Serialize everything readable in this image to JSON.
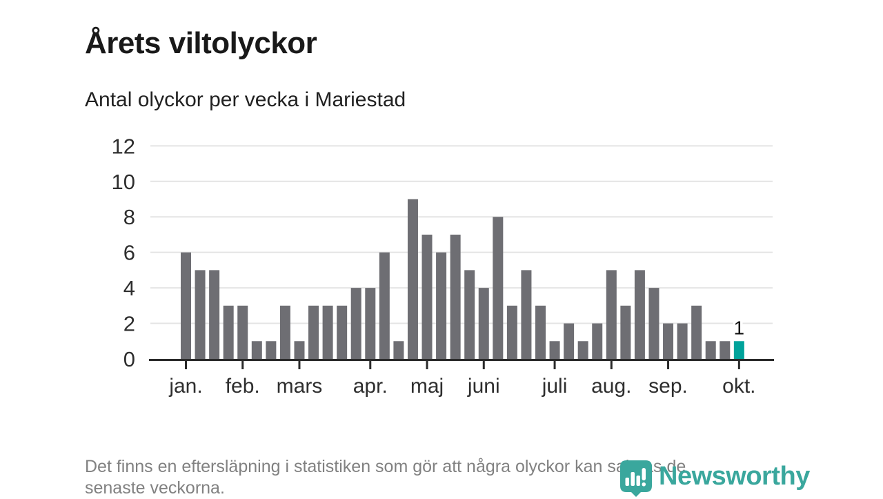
{
  "header": {
    "title": "Årets viltolyckor",
    "subtitle": "Antal olyckor per vecka i Mariestad"
  },
  "chart_data": {
    "type": "bar",
    "title": "Årets viltolyckor",
    "subtitle": "Antal olyckor per vecka i Mariestad",
    "x_unit": "week",
    "values": [
      6,
      5,
      5,
      3,
      3,
      1,
      1,
      3,
      1,
      3,
      3,
      3,
      4,
      4,
      6,
      1,
      9,
      7,
      6,
      7,
      5,
      4,
      8,
      3,
      5,
      3,
      1,
      2,
      1,
      2,
      5,
      3,
      5,
      4,
      2,
      2,
      3,
      1,
      1,
      1
    ],
    "highlight_index": 39,
    "highlight_value_label": "1",
    "month_ticks": [
      {
        "label": "jan.",
        "week": 1
      },
      {
        "label": "feb.",
        "week": 5
      },
      {
        "label": "mars",
        "week": 9
      },
      {
        "label": "apr.",
        "week": 14
      },
      {
        "label": "maj",
        "week": 18
      },
      {
        "label": "juni",
        "week": 22
      },
      {
        "label": "juli",
        "week": 27
      },
      {
        "label": "aug.",
        "week": 31
      },
      {
        "label": "sep.",
        "week": 35
      },
      {
        "label": "okt.",
        "week": 40
      }
    ],
    "yticks": [
      0,
      2,
      4,
      6,
      8,
      10,
      12
    ],
    "ylim": [
      0,
      12
    ],
    "grid": "horizontal",
    "legend": "none",
    "bar_color": "#6e6e73",
    "highlight_color": "#00a39b",
    "axis_color": "#2a2a2a",
    "grid_color": "#e4e4e4",
    "tick_label_color": "#2e2e2e"
  },
  "footer": {
    "lines": [
      "Det finns en eftersläpning i statistiken som gör att några olyckor kan saknas de",
      "senaste veckorna."
    ]
  },
  "logo": {
    "text": "Newsworthy",
    "color": "#3aa79d",
    "icon": "newsworthy-pin-barchart-icon"
  }
}
